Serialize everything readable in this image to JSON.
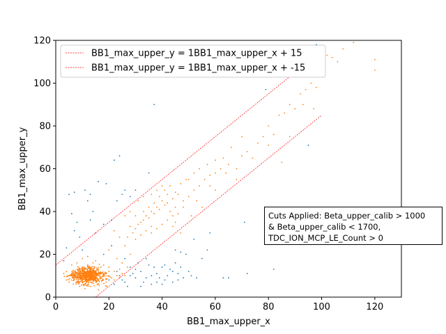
{
  "chart_data": {
    "type": "scatter",
    "title": "",
    "xlabel": "BB1_max_upper_x",
    "ylabel": "BB1_max_upper_y",
    "xlim": [
      0,
      130
    ],
    "ylim": [
      0,
      120
    ],
    "x_ticks": [
      0,
      20,
      40,
      60,
      80,
      100,
      120
    ],
    "y_ticks": [
      0,
      20,
      40,
      60,
      80,
      100,
      120
    ],
    "grid": false,
    "legend_position": "top-left",
    "colors": {
      "all": "#1f77b4",
      "cut": "#ff7f0e",
      "line": "#ff0000"
    },
    "lines": [
      {
        "name": "BB1_max_upper_y = 1BB1_max_upper_x + 15",
        "slope": 1,
        "intercept": 15,
        "x": [
          0,
          100
        ]
      },
      {
        "name": "BB1_max_upper_y = 1BB1_max_upper_x + -15",
        "slope": 1,
        "intercept": -15,
        "x": [
          0,
          100
        ]
      }
    ],
    "series": [
      {
        "color": "#1f77b4",
        "points": [
          [
            5,
            48
          ],
          [
            7,
            49
          ],
          [
            11,
            50
          ],
          [
            13,
            48
          ],
          [
            16,
            54
          ],
          [
            19,
            53
          ],
          [
            12,
            45
          ],
          [
            6,
            39
          ],
          [
            7,
            31
          ],
          [
            14,
            40
          ],
          [
            18,
            34
          ],
          [
            13,
            36
          ],
          [
            8,
            35
          ],
          [
            9,
            28
          ],
          [
            21,
            36
          ],
          [
            15,
            30
          ],
          [
            23,
            45
          ],
          [
            24,
            66
          ],
          [
            25,
            48
          ],
          [
            22,
            64
          ],
          [
            26,
            50
          ],
          [
            28,
            47
          ],
          [
            35,
            58
          ],
          [
            10,
            22
          ],
          [
            18,
            20
          ],
          [
            21,
            24
          ],
          [
            4,
            23
          ],
          [
            3,
            17
          ],
          [
            30,
            50
          ],
          [
            37,
            90
          ],
          [
            45,
            22
          ],
          [
            47,
            21
          ],
          [
            49,
            20
          ],
          [
            52,
            27
          ],
          [
            51,
            10
          ],
          [
            53,
            9
          ],
          [
            55,
            18
          ],
          [
            57,
            22
          ],
          [
            58,
            30
          ],
          [
            63,
            9
          ],
          [
            65,
            9
          ],
          [
            71,
            35
          ],
          [
            72,
            11
          ],
          [
            79,
            97
          ],
          [
            82,
            13
          ],
          [
            95,
            71
          ],
          [
            98,
            118
          ],
          [
            101,
            107
          ],
          [
            26,
            18
          ],
          [
            28,
            14
          ],
          [
            32,
            12
          ],
          [
            35,
            15
          ],
          [
            38,
            11
          ],
          [
            40,
            14
          ],
          [
            42,
            10
          ],
          [
            44,
            12
          ],
          [
            46,
            8
          ],
          [
            48,
            9
          ],
          [
            30,
            9
          ],
          [
            33,
            7
          ],
          [
            36,
            6
          ],
          [
            27,
            5
          ],
          [
            25,
            8
          ],
          [
            29,
            11
          ],
          [
            31,
            16
          ],
          [
            34,
            18
          ],
          [
            37,
            14
          ],
          [
            41,
            15
          ],
          [
            43,
            13
          ],
          [
            39,
            9
          ],
          [
            24,
            10
          ],
          [
            22,
            6
          ],
          [
            20,
            8
          ],
          [
            23,
            12
          ],
          [
            45,
            16
          ],
          [
            47,
            14
          ],
          [
            50,
            12
          ],
          [
            41,
            8
          ],
          [
            38,
            7
          ],
          [
            36,
            10
          ],
          [
            30,
            13
          ],
          [
            28,
            10
          ],
          [
            26,
            7
          ],
          [
            34,
            9
          ],
          [
            32,
            5
          ],
          [
            44,
            7
          ],
          [
            46,
            11
          ],
          [
            40,
            6
          ]
        ]
      },
      {
        "color": "#ff7f0e",
        "points": [
          [
            5,
            10
          ],
          [
            6,
            8
          ],
          [
            7,
            12
          ],
          [
            8,
            9
          ],
          [
            9,
            11
          ],
          [
            10,
            10
          ],
          [
            11,
            9
          ],
          [
            12,
            11
          ],
          [
            13,
            10
          ],
          [
            14,
            8
          ],
          [
            15,
            9
          ],
          [
            16,
            10
          ],
          [
            8,
            13
          ],
          [
            10,
            14
          ],
          [
            12,
            15
          ],
          [
            14,
            13
          ],
          [
            9,
            7
          ],
          [
            11,
            6
          ],
          [
            13,
            7
          ],
          [
            7,
            8
          ],
          [
            6,
            11
          ],
          [
            15,
            12
          ],
          [
            16,
            13
          ],
          [
            17,
            9
          ],
          [
            18,
            10
          ],
          [
            19,
            11
          ],
          [
            20,
            10
          ],
          [
            21,
            9
          ],
          [
            22,
            8
          ],
          [
            23,
            10
          ],
          [
            24,
            9
          ],
          [
            5,
            7
          ],
          [
            4,
            12
          ],
          [
            3,
            11
          ],
          [
            4,
            8
          ],
          [
            10,
            18
          ],
          [
            12,
            19
          ],
          [
            15,
            17
          ],
          [
            18,
            15
          ],
          [
            20,
            14
          ],
          [
            6,
            15
          ],
          [
            8,
            16
          ],
          [
            9,
            5
          ],
          [
            11,
            4
          ],
          [
            13,
            5
          ],
          [
            16,
            6
          ],
          [
            19,
            7
          ],
          [
            22,
            12
          ],
          [
            24,
            13
          ],
          [
            25,
            11
          ],
          [
            26,
            10
          ],
          [
            17,
            14
          ],
          [
            14,
            16
          ],
          [
            10,
            12
          ],
          [
            12,
            8
          ],
          [
            9,
            9
          ],
          [
            7,
            10
          ],
          [
            11,
            13
          ],
          [
            13,
            12
          ],
          [
            15,
            11
          ],
          [
            16,
            8
          ],
          [
            18,
            8
          ],
          [
            20,
            12
          ],
          [
            12,
            6
          ],
          [
            14,
            10
          ],
          [
            10,
            8
          ],
          [
            8,
            11
          ],
          [
            11,
            11
          ],
          [
            9,
            13
          ],
          [
            13,
            9
          ],
          [
            28,
            33
          ],
          [
            30,
            32
          ],
          [
            32,
            35
          ],
          [
            34,
            38
          ],
          [
            36,
            40
          ],
          [
            38,
            42
          ],
          [
            40,
            45
          ],
          [
            42,
            44
          ],
          [
            44,
            46
          ],
          [
            46,
            48
          ],
          [
            30,
            38
          ],
          [
            33,
            40
          ],
          [
            35,
            42
          ],
          [
            37,
            44
          ],
          [
            39,
            47
          ],
          [
            41,
            50
          ],
          [
            43,
            52
          ],
          [
            45,
            49
          ],
          [
            47,
            53
          ],
          [
            49,
            55
          ],
          [
            27,
            28
          ],
          [
            29,
            30
          ],
          [
            31,
            34
          ],
          [
            33,
            36
          ],
          [
            35,
            37
          ],
          [
            37,
            39
          ],
          [
            39,
            41
          ],
          [
            41,
            43
          ],
          [
            43,
            40
          ],
          [
            45,
            42
          ],
          [
            36,
            30
          ],
          [
            38,
            32
          ],
          [
            40,
            34
          ],
          [
            42,
            36
          ],
          [
            44,
            38
          ],
          [
            30,
            27
          ],
          [
            32,
            29
          ],
          [
            34,
            31
          ],
          [
            36,
            33
          ],
          [
            26,
            38
          ],
          [
            28,
            40
          ],
          [
            31,
            45
          ],
          [
            33,
            47
          ],
          [
            36,
            48
          ],
          [
            38,
            50
          ],
          [
            40,
            52
          ],
          [
            42,
            48
          ],
          [
            48,
            45
          ],
          [
            50,
            47
          ],
          [
            52,
            50
          ],
          [
            54,
            52
          ],
          [
            56,
            55
          ],
          [
            58,
            57
          ],
          [
            60,
            58
          ],
          [
            62,
            60
          ],
          [
            50,
            55
          ],
          [
            52,
            58
          ],
          [
            54,
            60
          ],
          [
            57,
            62
          ],
          [
            60,
            64
          ],
          [
            63,
            65
          ],
          [
            65,
            62
          ],
          [
            66,
            70
          ],
          [
            68,
            60
          ],
          [
            70,
            66
          ],
          [
            72,
            68
          ],
          [
            74,
            65
          ],
          [
            76,
            72
          ],
          [
            78,
            75
          ],
          [
            80,
            80
          ],
          [
            82,
            76
          ],
          [
            84,
            85
          ],
          [
            86,
            86
          ],
          [
            88,
            90
          ],
          [
            90,
            88
          ],
          [
            92,
            95
          ],
          [
            94,
            97
          ],
          [
            96,
            100
          ],
          [
            98,
            98
          ],
          [
            100,
            107
          ],
          [
            102,
            113
          ],
          [
            104,
            112
          ],
          [
            106,
            110
          ],
          [
            108,
            116
          ],
          [
            112,
            119
          ],
          [
            120,
            111
          ],
          [
            120,
            106
          ],
          [
            80,
            71
          ],
          [
            85,
            63
          ],
          [
            88,
            75
          ],
          [
            93,
            90
          ],
          [
            97,
            88
          ],
          [
            70,
            75
          ],
          [
            68,
            55
          ],
          [
            64,
            58
          ],
          [
            60,
            50
          ],
          [
            58,
            52
          ],
          [
            55,
            42
          ],
          [
            53,
            45
          ],
          [
            51,
            38
          ],
          [
            48,
            42
          ],
          [
            46,
            39
          ],
          [
            44,
            33
          ],
          [
            47,
            30
          ],
          [
            45,
            35
          ],
          [
            28,
            20
          ],
          [
            24,
            28
          ],
          [
            22,
            31
          ],
          [
            26,
            24
          ],
          [
            23,
            18
          ],
          [
            20,
            22
          ],
          [
            25,
            16
          ],
          [
            27,
            14
          ]
        ]
      }
    ],
    "legend": {
      "entries": [
        "BB1_max_upper_y = 1BB1_max_upper_x + 15",
        "BB1_max_upper_y = 1BB1_max_upper_x + -15"
      ]
    },
    "annotation": {
      "lines": [
        "Cuts Applied: Beta_upper_calib > 1000",
        "& Beta_upper_calib < 1700,",
        "TDC_ION_MCP_LE_Count > 0"
      ]
    }
  }
}
